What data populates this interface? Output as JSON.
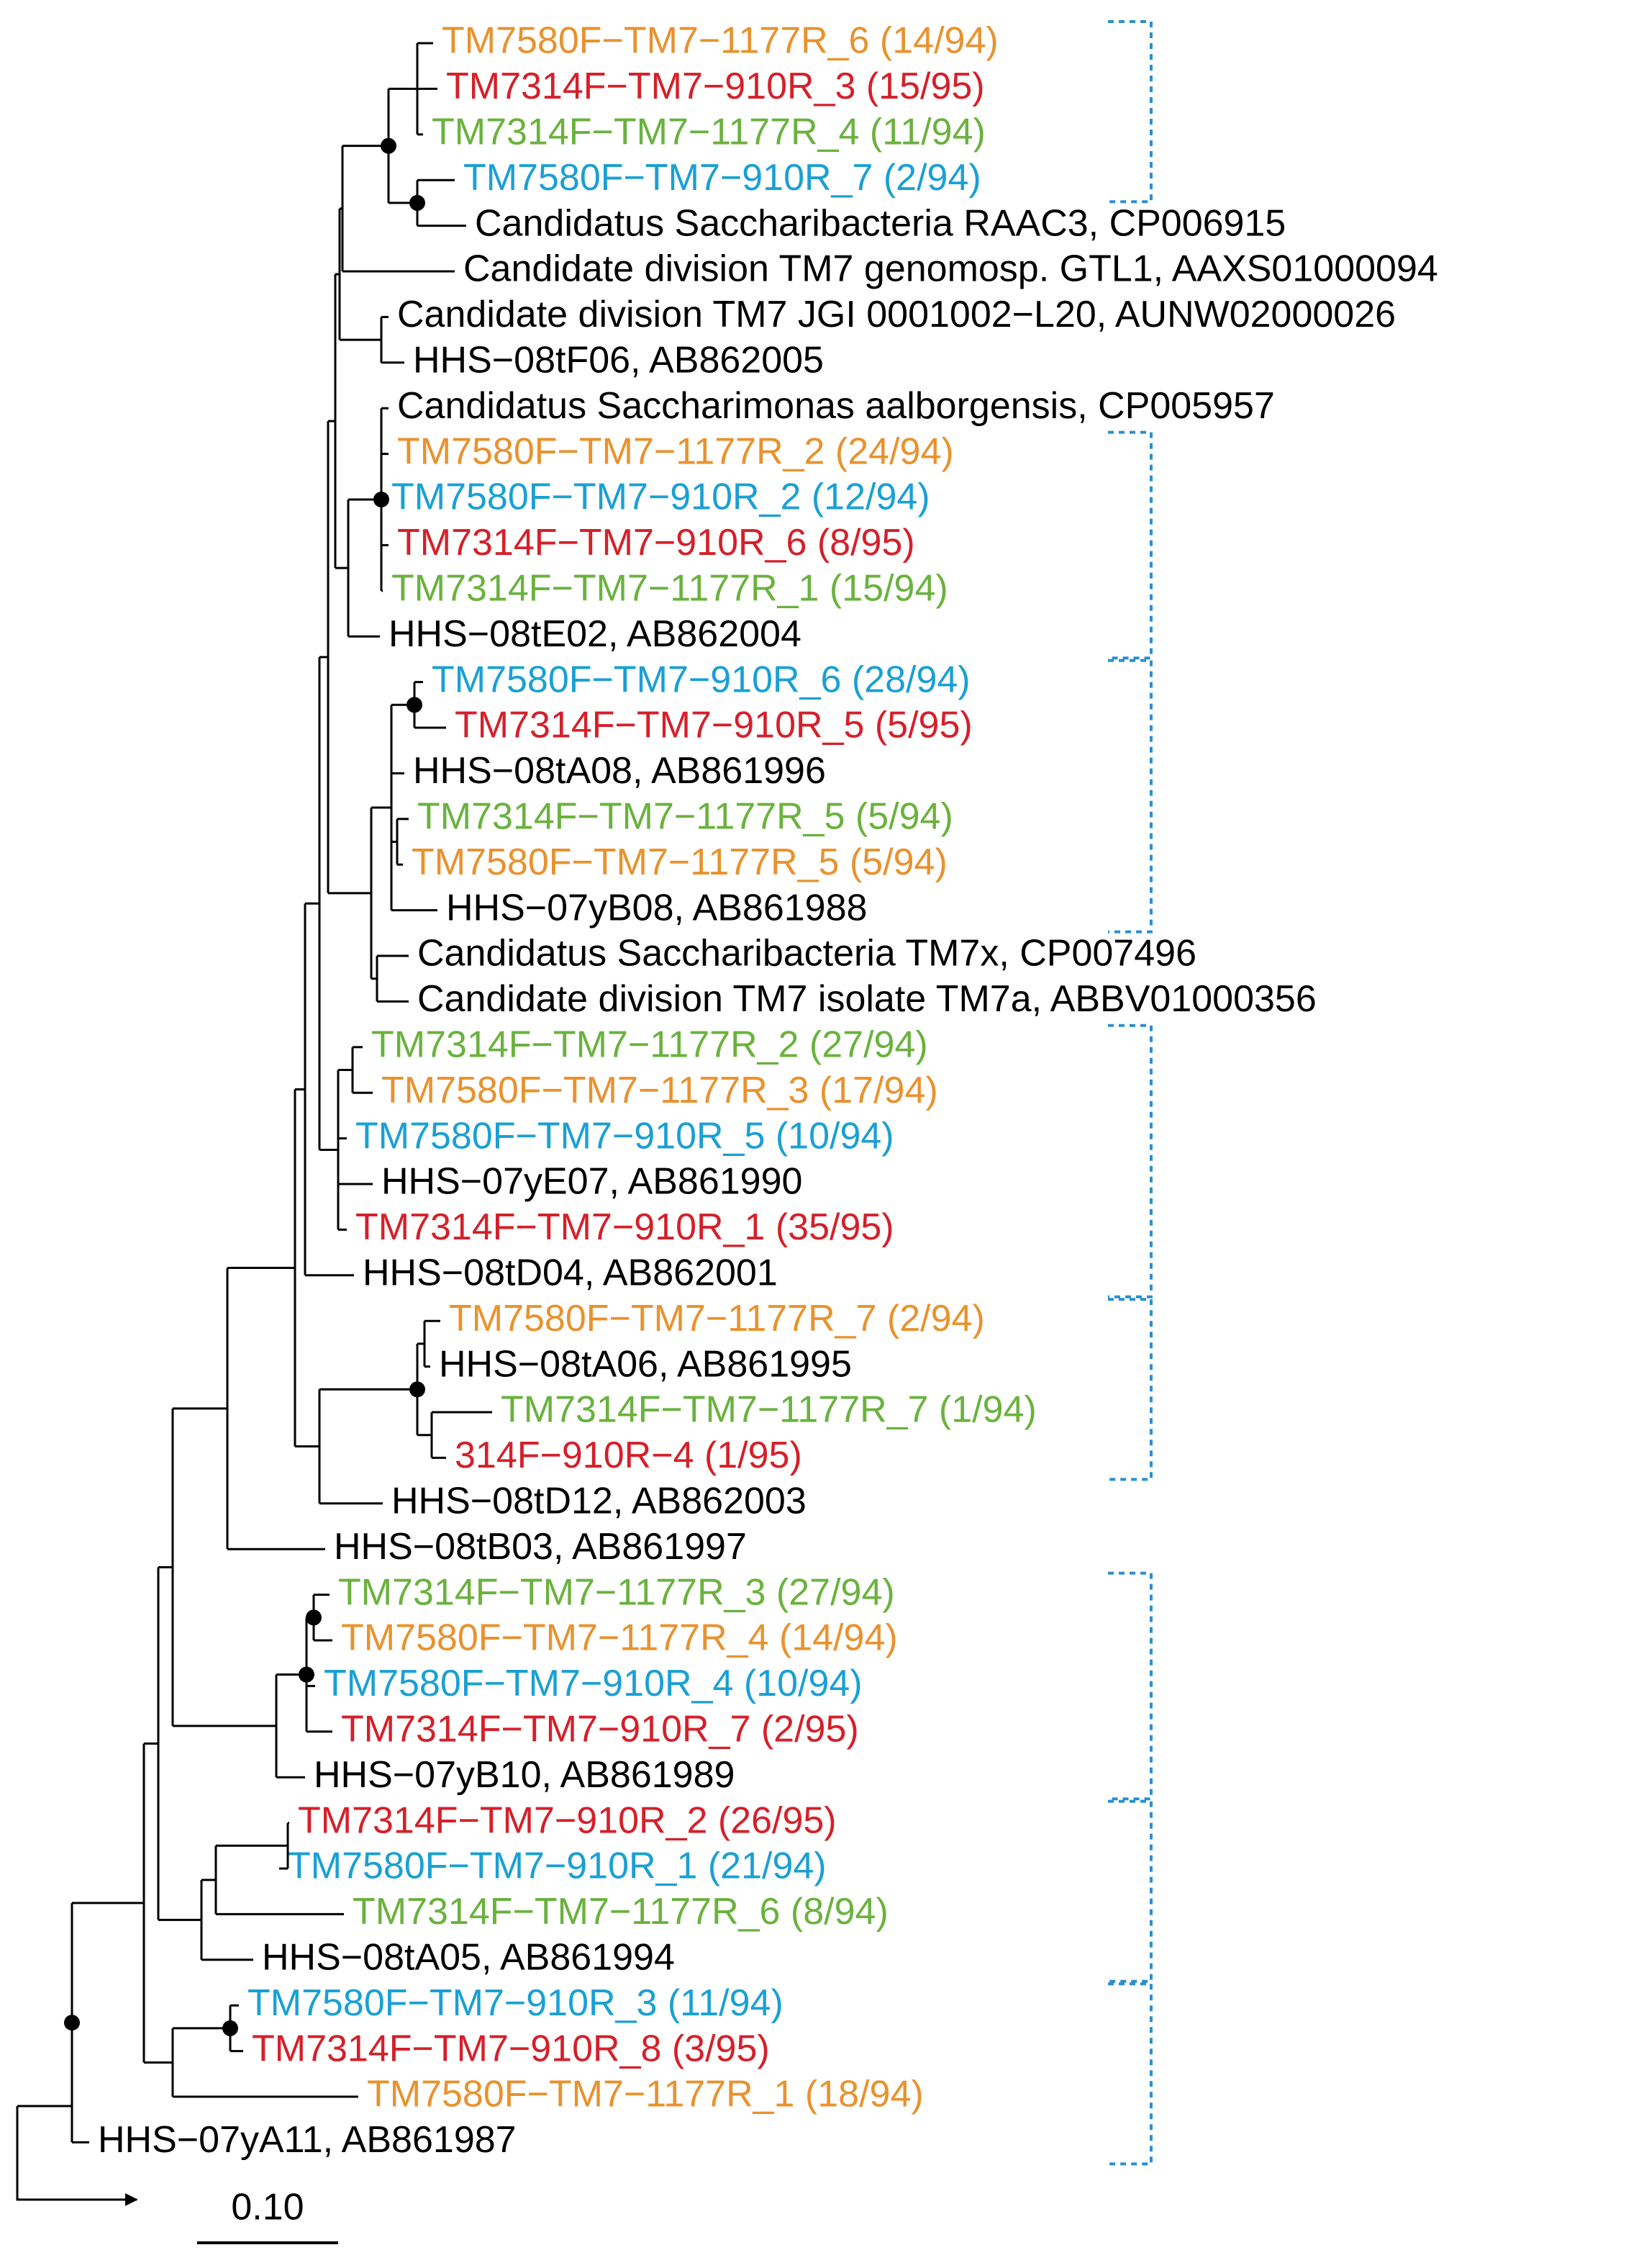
{
  "leaves": [
    {
      "label": "TM7580F−TM7−1177R_6 (14/94)",
      "color": "#e8922e"
    },
    {
      "label": "TM7314F−TM7−910R_3 (15/95)",
      "color": "#d4202a"
    },
    {
      "label": "TM7314F−TM7−1177R_4 (11/94)",
      "color": "#6ab23e"
    },
    {
      "label": "TM7580F−TM7−910R_7 (2/94)",
      "color": "#1aa0d4"
    },
    {
      "label": "Candidatus Saccharibacteria RAAC3, CP006915",
      "color": "#000000"
    },
    {
      "label": "Candidate division TM7 genomosp. GTL1, AAXS01000094",
      "color": "#000000"
    },
    {
      "label": "Candidate division TM7 JGI 0001002−L20, AUNW02000026",
      "color": "#000000"
    },
    {
      "label": "HHS−08tF06, AB862005",
      "color": "#000000"
    },
    {
      "label": "Candidatus Saccharimonas aalborgensis, CP005957",
      "color": "#000000"
    },
    {
      "label": "TM7580F−TM7−1177R_2 (24/94)",
      "color": "#e8922e"
    },
    {
      "label": "TM7580F−TM7−910R_2 (12/94)",
      "color": "#1aa0d4"
    },
    {
      "label": "TM7314F−TM7−910R_6 (8/95)",
      "color": "#d4202a"
    },
    {
      "label": "TM7314F−TM7−1177R_1 (15/94)",
      "color": "#6ab23e"
    },
    {
      "label": "HHS−08tE02, AB862004",
      "color": "#000000"
    },
    {
      "label": "TM7580F−TM7−910R_6 (28/94)",
      "color": "#1aa0d4"
    },
    {
      "label": "TM7314F−TM7−910R_5 (5/95)",
      "color": "#d4202a"
    },
    {
      "label": "HHS−08tA08, AB861996",
      "color": "#000000"
    },
    {
      "label": "TM7314F−TM7−1177R_5 (5/94)",
      "color": "#6ab23e"
    },
    {
      "label": "TM7580F−TM7−1177R_5 (5/94)",
      "color": "#e8922e"
    },
    {
      "label": "HHS−07yB08, AB861988",
      "color": "#000000"
    },
    {
      "label": "Candidatus Saccharibacteria TM7x, CP007496",
      "color": "#000000"
    },
    {
      "label": "Candidate division TM7 isolate TM7a, ABBV01000356",
      "color": "#000000"
    },
    {
      "label": "TM7314F−TM7−1177R_2 (27/94)",
      "color": "#6ab23e"
    },
    {
      "label": "TM7580F−TM7−1177R_3 (17/94)",
      "color": "#e8922e"
    },
    {
      "label": "TM7580F−TM7−910R_5 (10/94)",
      "color": "#1aa0d4"
    },
    {
      "label": "HHS−07yE07, AB861990",
      "color": "#000000"
    },
    {
      "label": "TM7314F−TM7−910R_1 (35/95)",
      "color": "#d4202a"
    },
    {
      "label": "HHS−08tD04, AB862001",
      "color": "#000000"
    },
    {
      "label": "TM7580F−TM7−1177R_7 (2/94)",
      "color": "#e8922e"
    },
    {
      "label": "HHS−08tA06, AB861995",
      "color": "#000000"
    },
    {
      "label": "TM7314F−TM7−1177R_7 (1/94)",
      "color": "#6ab23e"
    },
    {
      "label": "314F−910R−4 (1/95)",
      "color": "#d4202a"
    },
    {
      "label": "HHS−08tD12, AB862003",
      "color": "#000000"
    },
    {
      "label": "HHS−08tB03, AB861997",
      "color": "#000000"
    },
    {
      "label": "TM7314F−TM7−1177R_3 (27/94)",
      "color": "#6ab23e"
    },
    {
      "label": "TM7580F−TM7−1177R_4 (14/94)",
      "color": "#e8922e"
    },
    {
      "label": "TM7580F−TM7−910R_4 (10/94)",
      "color": "#1aa0d4"
    },
    {
      "label": "TM7314F−TM7−910R_7 (2/95)",
      "color": "#d4202a"
    },
    {
      "label": "HHS−07yB10, AB861989",
      "color": "#000000"
    },
    {
      "label": "TM7314F−TM7−910R_2 (26/95)",
      "color": "#d4202a"
    },
    {
      "label": "TM7580F−TM7−910R_1 (21/94)",
      "color": "#1aa0d4"
    },
    {
      "label": "TM7314F−TM7−1177R_6 (8/94)",
      "color": "#6ab23e"
    },
    {
      "label": "HHS−08tA05, AB861994",
      "color": "#000000"
    },
    {
      "label": "TM7580F−TM7−910R_3 (11/94)",
      "color": "#1aa0d4"
    },
    {
      "label": "TM7314F−TM7−910R_8 (3/95)",
      "color": "#d4202a"
    },
    {
      "label": "TM7580F−TM7−1177R_1 (18/94)",
      "color": "#e8922e"
    },
    {
      "label": "HHS−07yA11, AB861987",
      "color": "#000000"
    }
  ],
  "scale_bar": "0.10"
}
